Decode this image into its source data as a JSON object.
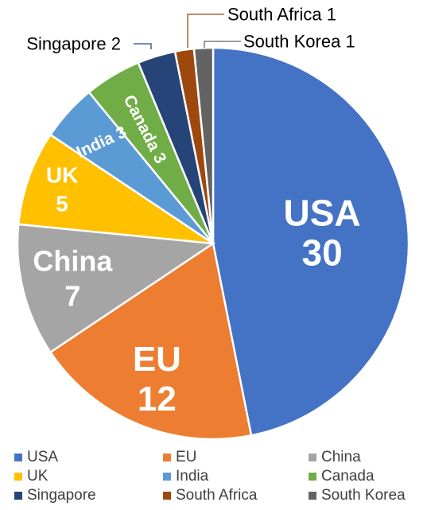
{
  "chart_data": {
    "type": "pie",
    "title": "",
    "start_angle_deg": 0,
    "direction": "clockwise",
    "slices": [
      {
        "name": "USA",
        "value": 30,
        "color": "#4472C4",
        "label_lines": [
          "USA",
          "30"
        ],
        "label_style": "inside",
        "label_color": "#ffffff",
        "label_rotate": 0
      },
      {
        "name": "EU",
        "value": 12,
        "color": "#ED7D31",
        "label_lines": [
          "EU",
          "12"
        ],
        "label_style": "inside",
        "label_color": "#ffffff",
        "label_rotate": 0
      },
      {
        "name": "China",
        "value": 7,
        "color": "#A5A5A5",
        "label_lines": [
          "China",
          "7"
        ],
        "label_style": "inside",
        "label_color": "#ffffff",
        "label_rotate": 0
      },
      {
        "name": "UK",
        "value": 5,
        "color": "#FFC000",
        "label_lines": [
          "UK",
          "5"
        ],
        "label_style": "inside",
        "label_color": "#ffffff",
        "label_rotate": 0
      },
      {
        "name": "India",
        "value": 3,
        "color": "#5B9BD5",
        "label_lines": [
          "India 3"
        ],
        "label_style": "inside",
        "label_color": "#ffffff",
        "label_rotate": -25
      },
      {
        "name": "Canada",
        "value": 3,
        "color": "#70AD47",
        "label_lines": [
          "Canada 3"
        ],
        "label_style": "inside",
        "label_color": "#ffffff",
        "label_rotate": 63
      },
      {
        "name": "Singapore",
        "value": 2,
        "color": "#264478",
        "label_lines": [
          "Singapore 2"
        ],
        "label_style": "callout",
        "label_color": "#000000",
        "label_rotate": 0
      },
      {
        "name": "South Africa",
        "value": 1,
        "color": "#9E480E",
        "label_lines": [
          "South Africa 1"
        ],
        "label_style": "callout",
        "label_color": "#000000",
        "label_rotate": 0
      },
      {
        "name": "South Korea",
        "value": 1,
        "color": "#636363",
        "label_lines": [
          "South Korea 1"
        ],
        "label_style": "callout",
        "label_color": "#000000",
        "label_rotate": 0
      }
    ],
    "legend": {
      "position": "bottom",
      "columns": 3,
      "items": [
        "USA",
        "EU",
        "China",
        "UK",
        "India",
        "Canada",
        "Singapore",
        "South Africa",
        "South Korea"
      ]
    }
  }
}
